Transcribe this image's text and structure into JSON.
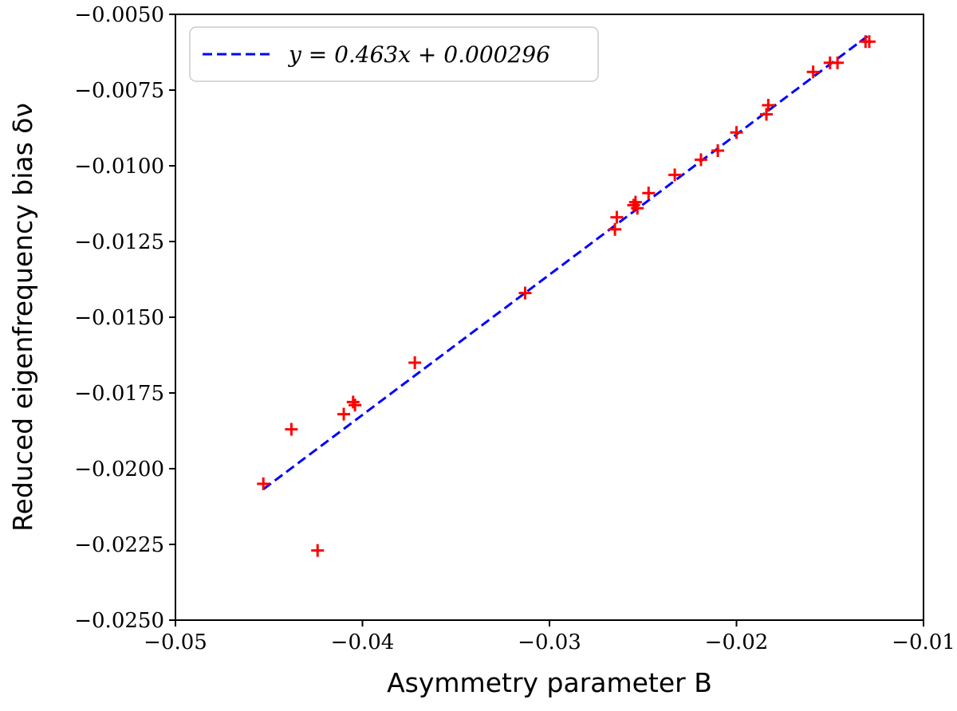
{
  "chart_data": {
    "type": "scatter",
    "xlabel": "Asymmetry parameter B",
    "ylabel": "Reduced eigenfrequency bias δν",
    "xlim": [
      -0.05,
      -0.01
    ],
    "ylim": [
      -0.025,
      -0.005
    ],
    "x_ticks": [
      -0.05,
      -0.04,
      -0.03,
      -0.02,
      -0.01
    ],
    "x_tick_labels": [
      "−0.05",
      "−0.04",
      "−0.03",
      "−0.02",
      "−0.01"
    ],
    "y_ticks": [
      -0.005,
      -0.0075,
      -0.01,
      -0.0125,
      -0.015,
      -0.0175,
      -0.02,
      -0.0225,
      -0.025
    ],
    "y_tick_labels": [
      "−0.0050",
      "−0.0075",
      "−0.0100",
      "−0.0125",
      "−0.0150",
      "−0.0175",
      "−0.0200",
      "−0.0225",
      "−0.0250"
    ],
    "grid": false,
    "legend_position": "top-left",
    "series": [
      {
        "kind": "points",
        "marker": "plus",
        "color": "#ff0000",
        "x": [
          -0.0453,
          -0.0438,
          -0.0424,
          -0.041,
          -0.0405,
          -0.0404,
          -0.0372,
          -0.0313,
          -0.0265,
          -0.0264,
          -0.0255,
          -0.0254,
          -0.0253,
          -0.0247,
          -0.0233,
          -0.0219,
          -0.021,
          -0.02,
          -0.0184,
          -0.0183,
          -0.0159,
          -0.015,
          -0.0146,
          -0.0131,
          -0.0129
        ],
        "y": [
          -0.0205,
          -0.0187,
          -0.0227,
          -0.0182,
          -0.0178,
          -0.0179,
          -0.0165,
          -0.0142,
          -0.0121,
          -0.0117,
          -0.0113,
          -0.0112,
          -0.0114,
          -0.0109,
          -0.0103,
          -0.0098,
          -0.0095,
          -0.0089,
          -0.0083,
          -0.008,
          -0.0069,
          -0.0066,
          -0.0066,
          -0.0059,
          -0.0059
        ]
      },
      {
        "kind": "fit-line",
        "name": "y = 0.463x + 0.000296",
        "color": "#0000ff",
        "style": "dashed",
        "slope": 0.463,
        "intercept": 0.000296,
        "x_range": [
          -0.0453,
          -0.013
        ]
      }
    ]
  }
}
